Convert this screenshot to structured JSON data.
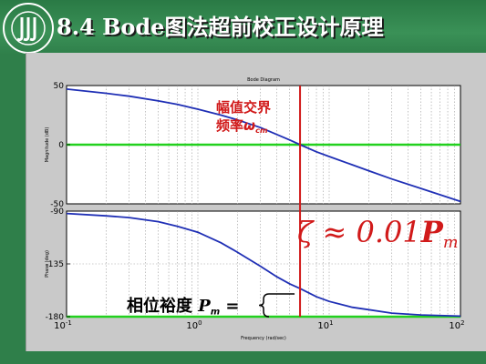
{
  "slide": {
    "title": "8.4 Bode图法超前校正设计原理",
    "logo_text": "三江学院",
    "logo_subtext": "SANJIANG UNIVERSITY"
  },
  "annotations": {
    "crossover_line1": "幅值交界",
    "crossover_line2": "频率",
    "crossover_symbol": "ω",
    "crossover_sub": "cm",
    "zeta_formula": "ζ ≈ 0.01",
    "zeta_symbol": "P",
    "zeta_sub": "m",
    "pm_label": "相位裕度",
    "pm_symbol": "P",
    "pm_sub": "m",
    "pm_eq": " ="
  },
  "colors": {
    "curve": "#1f2fb5",
    "reference": "#22d11e",
    "crossover": "#d11a1a",
    "grid": "#9a9a9a"
  },
  "chart_data": [
    {
      "type": "line",
      "title": "Bode Diagram",
      "ylabel": "Magnitude (dB)",
      "xscale": "log",
      "xlim": [
        0.1,
        100
      ],
      "ylim": [
        -50,
        50
      ],
      "yticks": [
        "50",
        "0",
        "-50"
      ],
      "yticks_values": [
        50,
        0,
        -50
      ],
      "reference_line": 0,
      "crossover_x": 6,
      "grid": true,
      "series": [
        {
          "x": [
            0.1,
            0.2,
            0.3,
            0.5,
            0.7,
            1,
            1.5,
            2,
            3,
            5,
            6,
            8,
            10,
            15,
            20,
            30,
            50,
            100
          ],
          "y": [
            47,
            43.5,
            41,
            37,
            34,
            30,
            25,
            21,
            14.5,
            4,
            0,
            -6,
            -10,
            -17,
            -22,
            -29,
            -37,
            -48
          ]
        }
      ]
    },
    {
      "type": "line",
      "xlabel": "Frequency (rad/sec)",
      "ylabel": "Phase (deg)",
      "xscale": "log",
      "xlim": [
        0.1,
        100
      ],
      "ylim": [
        -180,
        -90
      ],
      "yticks": [
        "-90",
        "-135",
        "-180"
      ],
      "yticks_values": [
        -90,
        -135,
        -180
      ],
      "xticks": [
        "10-1",
        "100",
        "101",
        "102"
      ],
      "xticks_values": [
        0.1,
        1,
        10,
        100
      ],
      "reference_line": -180,
      "crossover_x": 6,
      "grid": true,
      "series": [
        {
          "x": [
            0.1,
            0.2,
            0.3,
            0.5,
            0.7,
            1,
            1.5,
            2,
            3,
            4,
            5,
            6,
            8,
            10,
            15,
            20,
            30,
            50,
            100
          ],
          "y": [
            -92,
            -94,
            -95.5,
            -99,
            -103,
            -108,
            -117,
            -125,
            -137,
            -146,
            -152,
            -156,
            -163,
            -167,
            -172,
            -174,
            -177,
            -178.5,
            -179.5
          ]
        }
      ]
    }
  ]
}
